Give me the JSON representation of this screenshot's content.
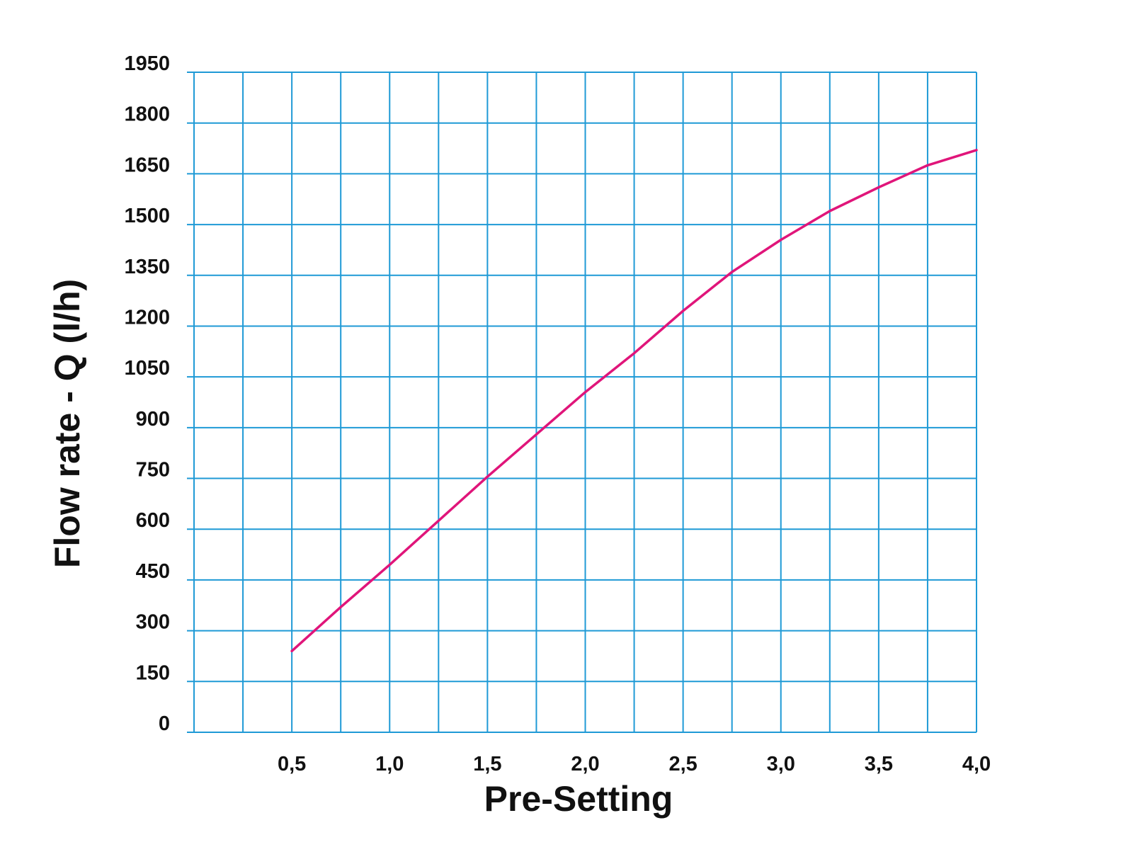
{
  "chart_data": {
    "type": "line",
    "xlabel": "Pre-Setting",
    "ylabel": "Flow rate - Q (l/h)",
    "xlim": [
      0.0,
      4.0
    ],
    "ylim": [
      0,
      1950
    ],
    "x_ticks": [
      0.5,
      1.0,
      1.5,
      2.0,
      2.5,
      3.0,
      3.5,
      4.0
    ],
    "x_tick_labels": [
      "0,5",
      "1,0",
      "1,5",
      "2,0",
      "2,5",
      "3,0",
      "3,5",
      "4,0"
    ],
    "x_grid_step": 0.25,
    "y_ticks": [
      0,
      150,
      300,
      450,
      600,
      750,
      900,
      1050,
      1200,
      1350,
      1500,
      1650,
      1800,
      1950
    ],
    "y_tick_labels": [
      "0",
      "150",
      "300",
      "450",
      "600",
      "750",
      "900",
      "1050",
      "1200",
      "1350",
      "1500",
      "1650",
      "1800",
      "1950"
    ],
    "grid": true,
    "grid_color": "#1f9ad6",
    "series": [
      {
        "color": "#e0157a",
        "x": [
          0.5,
          0.75,
          1.0,
          1.25,
          1.5,
          1.75,
          2.0,
          2.25,
          2.5,
          2.75,
          3.0,
          3.25,
          3.5,
          3.75,
          4.0
        ],
        "y": [
          240,
          370,
          495,
          625,
          755,
          880,
          1005,
          1120,
          1245,
          1360,
          1455,
          1540,
          1610,
          1675,
          1720
        ]
      }
    ]
  }
}
